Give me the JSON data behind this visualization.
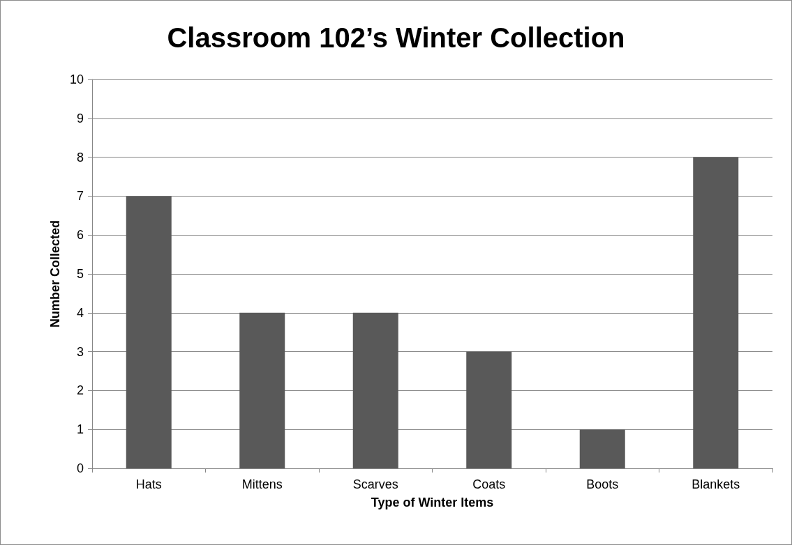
{
  "chart_data": {
    "type": "bar",
    "title": "Classroom 102’s Winter Collection",
    "xlabel": "Type of Winter Items",
    "ylabel": "Number Collected",
    "categories": [
      "Hats",
      "Mittens",
      "Scarves",
      "Coats",
      "Boots",
      "Blankets"
    ],
    "values": [
      7,
      4,
      4,
      3,
      1,
      8
    ],
    "color": "#595959",
    "ylim": [
      0,
      10
    ],
    "yticks": [
      0,
      1,
      2,
      3,
      4,
      5,
      6,
      7,
      8,
      9,
      10
    ],
    "grid": "y"
  }
}
